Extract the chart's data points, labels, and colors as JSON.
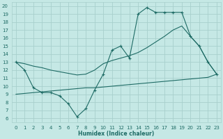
{
  "xlabel": "Humidex (Indice chaleur)",
  "bg_color": "#c5e8e5",
  "line_color": "#1e6b65",
  "grid_color": "#a8d0cc",
  "xlim": [
    -0.5,
    23.5
  ],
  "ylim": [
    5.5,
    20.5
  ],
  "xticks": [
    0,
    1,
    2,
    3,
    4,
    5,
    6,
    7,
    8,
    9,
    10,
    11,
    12,
    13,
    14,
    15,
    16,
    17,
    18,
    19,
    20,
    21,
    22,
    23
  ],
  "yticks": [
    6,
    7,
    8,
    9,
    10,
    11,
    12,
    13,
    14,
    15,
    16,
    17,
    18,
    19,
    20
  ],
  "line_jagged_x": [
    0,
    1,
    2,
    3,
    4,
    5,
    6,
    7,
    8,
    9,
    10,
    11,
    12,
    13,
    14,
    15,
    16,
    17,
    18,
    19,
    20,
    21,
    22,
    23
  ],
  "line_jagged_y": [
    13.0,
    12.0,
    9.8,
    9.2,
    9.2,
    8.8,
    7.8,
    6.2,
    7.2,
    9.5,
    11.5,
    14.5,
    15.0,
    13.5,
    19.0,
    19.8,
    19.2,
    19.2,
    19.2,
    19.2,
    16.2,
    15.0,
    13.0,
    11.5
  ],
  "line_diag_x": [
    0,
    1,
    2,
    3,
    4,
    5,
    6,
    7,
    8,
    9,
    10,
    11,
    12,
    13,
    14,
    15,
    16,
    17,
    18,
    19,
    20,
    21,
    22,
    23
  ],
  "line_diag_y": [
    13.0,
    12.8,
    12.5,
    12.3,
    12.0,
    11.8,
    11.6,
    11.4,
    11.5,
    12.0,
    12.8,
    13.2,
    13.5,
    13.8,
    14.2,
    14.8,
    15.5,
    16.2,
    17.0,
    17.5,
    16.2,
    15.0,
    13.0,
    11.5
  ],
  "line_flat_x": [
    0,
    1,
    2,
    3,
    4,
    5,
    6,
    7,
    8,
    9,
    10,
    11,
    12,
    13,
    14,
    15,
    16,
    17,
    18,
    19,
    20,
    21,
    22,
    23
  ],
  "line_flat_y": [
    9.0,
    9.1,
    9.2,
    9.3,
    9.4,
    9.5,
    9.6,
    9.7,
    9.8,
    9.8,
    9.9,
    10.0,
    10.1,
    10.2,
    10.3,
    10.4,
    10.5,
    10.6,
    10.7,
    10.8,
    10.9,
    11.0,
    11.1,
    11.5
  ]
}
